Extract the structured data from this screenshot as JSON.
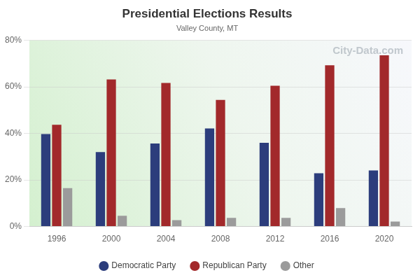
{
  "chart_data": {
    "type": "bar",
    "title": "Presidential Elections Results",
    "subtitle": "Valley County, MT",
    "annotations": [
      "City-Data.com"
    ],
    "categories": [
      "1996",
      "2000",
      "2004",
      "2008",
      "2012",
      "2016",
      "2020"
    ],
    "series": [
      {
        "name": "Democratic Party",
        "color": "#2c3d7c",
        "values": [
          39.7,
          32.0,
          35.7,
          42.1,
          36.0,
          22.9,
          24.1
        ]
      },
      {
        "name": "Republican Party",
        "color": "#a2292b",
        "values": [
          43.7,
          63.2,
          61.7,
          54.4,
          60.5,
          69.3,
          73.6
        ]
      },
      {
        "name": "Other",
        "color": "#9b9b9b",
        "values": [
          16.5,
          4.6,
          2.7,
          3.7,
          3.7,
          7.9,
          2.1
        ]
      }
    ],
    "ylim": [
      0,
      80
    ],
    "yticks": [
      {
        "value": 0,
        "label": "0%"
      },
      {
        "value": 20,
        "label": "20%"
      },
      {
        "value": 40,
        "label": "40%"
      },
      {
        "value": 60,
        "label": "60%"
      },
      {
        "value": 80,
        "label": "80%"
      }
    ],
    "grid": true,
    "legend": "bottom"
  }
}
